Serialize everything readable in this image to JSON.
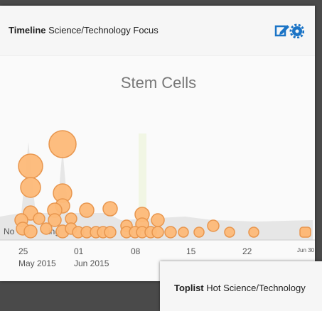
{
  "widget": {
    "header": {
      "title": "Timeline",
      "subtitle": "Science/Technology Focus"
    },
    "chart": {
      "title": "Stem Cells",
      "empty_text_start": "No",
      "empty_text_end": "ing",
      "x_labels": [
        {
          "day": "25",
          "month": "May 2015"
        },
        {
          "day": "01",
          "month": "Jun 2015"
        },
        {
          "day": "08"
        },
        {
          "day": "15"
        },
        {
          "day": "22"
        },
        {
          "day": "Jun 30"
        }
      ]
    }
  },
  "toplist": {
    "title": "Toplist",
    "subtitle": "Hot Science/Technology"
  }
}
